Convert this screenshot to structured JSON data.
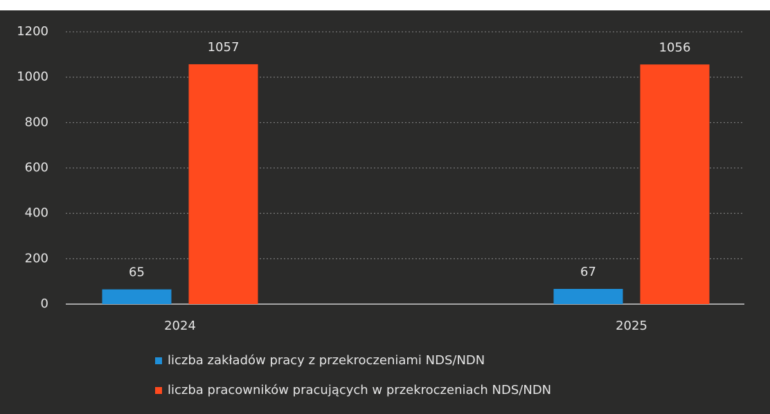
{
  "chart_data": {
    "type": "bar",
    "categories": [
      "2024",
      "2025"
    ],
    "series": [
      {
        "name": "liczba zakładów pracy z przekroczeniami NDS/NDN",
        "color": "#1f8fd8",
        "values": [
          65,
          67
        ]
      },
      {
        "name": "liczba pracowników pracujących w przekroczeniach NDS/NDN",
        "color": "#ff4a1e",
        "values": [
          1057,
          1056
        ]
      }
    ],
    "ylim": [
      0,
      1200
    ],
    "yticks": [
      0,
      200,
      400,
      600,
      800,
      1000,
      1200
    ],
    "grid": true,
    "legend": "bottom"
  }
}
